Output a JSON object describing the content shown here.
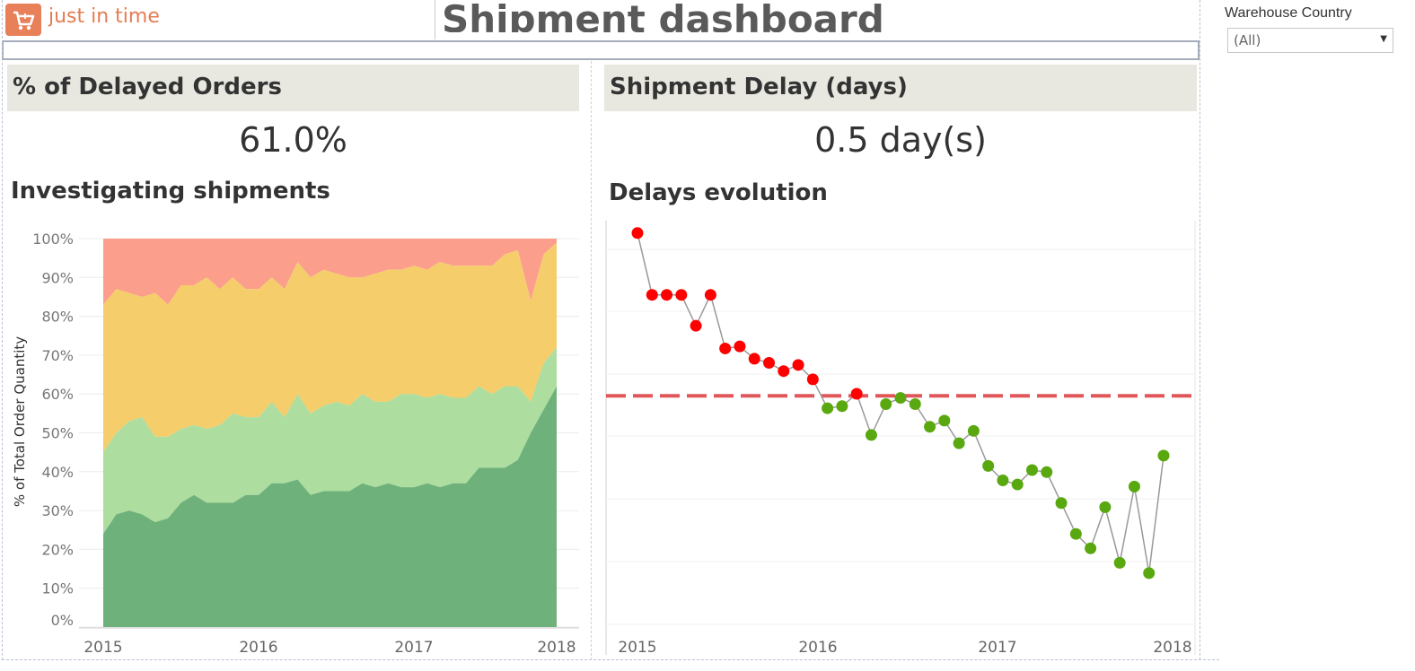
{
  "header": {
    "logo_text": "just in time",
    "dashboard_title": "Shipment dashboard",
    "brand_color": "#e8805a"
  },
  "filter": {
    "label": "Warehouse Country",
    "selected": "(All)",
    "arrow_icon": "dropdown-arrow-icon"
  },
  "kpis": [
    {
      "title": "% of Delayed Orders",
      "value": "61.0%"
    },
    {
      "title": "Shipment Delay (days)",
      "value": "0.5 day(s)"
    }
  ],
  "sections": {
    "left_title": "Investigating shipments",
    "right_title": "Delays evolution"
  },
  "chart_data": [
    {
      "type": "area",
      "stacked": "percent",
      "title": "Investigating shipments",
      "ylabel": "% of Total Order Quantity",
      "xlabel": "",
      "x_ticks": [
        "2015",
        "2016",
        "2017",
        "2018"
      ],
      "y_ticks": [
        "0%",
        "10%",
        "20%",
        "30%",
        "40%",
        "50%",
        "60%",
        "70%",
        "80%",
        "90%",
        "100%"
      ],
      "ylim": [
        0,
        100
      ],
      "series_colors": [
        "#6fb17a",
        "#aedda0",
        "#f5cd6a",
        "#fb9e8c"
      ],
      "layer_tops": [
        [
          24,
          29,
          30,
          29,
          27,
          28,
          32,
          34,
          32,
          32,
          32,
          34,
          34,
          37,
          37,
          38,
          34,
          35,
          35,
          35,
          37,
          36,
          37,
          36,
          36,
          37,
          36,
          37,
          37,
          41,
          41,
          41,
          43,
          50,
          56,
          62
        ],
        [
          45,
          50,
          53,
          54,
          49,
          49,
          51,
          52,
          51,
          52,
          55,
          54,
          54,
          58,
          54,
          60,
          55,
          57,
          58,
          57,
          60,
          58,
          58,
          60,
          60,
          59,
          60,
          59,
          59,
          62,
          60,
          62,
          62,
          58,
          68,
          72
        ],
        [
          83,
          87,
          86,
          85,
          86,
          83,
          88,
          88,
          90,
          87,
          90,
          87,
          87,
          90,
          87,
          94,
          90,
          92,
          91,
          90,
          90,
          91,
          92,
          92,
          93,
          92,
          94,
          93,
          93,
          93,
          93,
          96,
          97,
          84,
          96,
          99
        ],
        [
          100,
          100,
          100,
          100,
          100,
          100,
          100,
          100,
          100,
          100,
          100,
          100,
          100,
          100,
          100,
          100,
          100,
          100,
          100,
          100,
          100,
          100,
          100,
          100,
          100,
          100,
          100,
          100,
          100,
          100,
          100,
          100,
          100,
          100,
          100,
          100
        ]
      ]
    },
    {
      "type": "line",
      "title": "Delays evolution",
      "x_ticks": [
        "2015",
        "2016",
        "2017",
        "2018"
      ],
      "y_hidden": true,
      "reference_line": 0.5,
      "reference_color": "#e15759",
      "above_color": "#ff0000",
      "below_color": "#59a80f",
      "line_color": "#999999",
      "ylim": [
        -0.6,
        1.35
      ],
      "values": [
        1.29,
        0.99,
        0.99,
        0.99,
        0.84,
        0.99,
        0.73,
        0.74,
        0.68,
        0.66,
        0.62,
        0.65,
        0.58,
        0.44,
        0.45,
        0.51,
        0.31,
        0.46,
        0.49,
        0.46,
        0.35,
        0.38,
        0.27,
        0.33,
        0.16,
        0.09,
        0.07,
        0.14,
        0.13,
        -0.02,
        -0.17,
        -0.24,
        -0.04,
        -0.31,
        0.06,
        -0.36,
        0.21
      ]
    }
  ]
}
